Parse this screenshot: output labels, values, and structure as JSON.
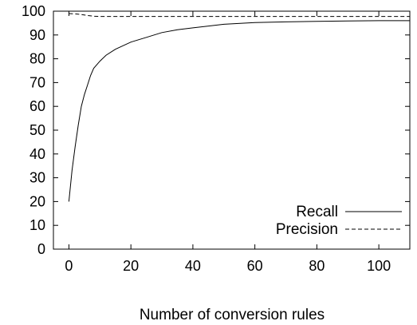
{
  "chart_data": {
    "type": "line",
    "xlabel": "Number of conversion rules",
    "ylabel": "",
    "xlim": [
      -5,
      110
    ],
    "ylim": [
      0,
      100
    ],
    "x_ticks": [
      0,
      20,
      40,
      60,
      80,
      100
    ],
    "y_ticks": [
      0,
      10,
      20,
      30,
      40,
      50,
      60,
      70,
      80,
      90,
      100
    ],
    "x_tick_labels": [
      "0",
      "20",
      "40",
      "60",
      "80",
      "100"
    ],
    "y_tick_labels": [
      "0",
      "10",
      "20",
      "30",
      "40",
      "50",
      "60",
      "70",
      "80",
      "90",
      "100"
    ],
    "grid": false,
    "legend_position": "bottom-right",
    "series": [
      {
        "name": "Recall",
        "style": "solid",
        "x": [
          0,
          1,
          2,
          3,
          4,
          5,
          6,
          7,
          8,
          10,
          12,
          15,
          20,
          25,
          30,
          35,
          40,
          50,
          60,
          70,
          80,
          90,
          100,
          110
        ],
        "y": [
          20,
          33,
          43,
          52,
          60,
          65,
          69,
          73,
          76,
          79,
          81.5,
          84,
          87,
          89,
          91,
          92.2,
          93,
          94.5,
          95.2,
          95.5,
          95.7,
          95.9,
          96,
          96
        ]
      },
      {
        "name": "Precision",
        "style": "dashed",
        "x": [
          0,
          2,
          4,
          6,
          8,
          10,
          15,
          20,
          30,
          40,
          50,
          60,
          70,
          80,
          90,
          100,
          110
        ],
        "y": [
          99,
          98.9,
          98.6,
          98.2,
          97.9,
          97.8,
          97.8,
          97.8,
          97.8,
          97.8,
          97.8,
          97.8,
          97.8,
          97.8,
          97.8,
          97.8,
          97.8
        ]
      }
    ]
  },
  "colors": {
    "line": "#000000",
    "background": "#ffffff"
  }
}
